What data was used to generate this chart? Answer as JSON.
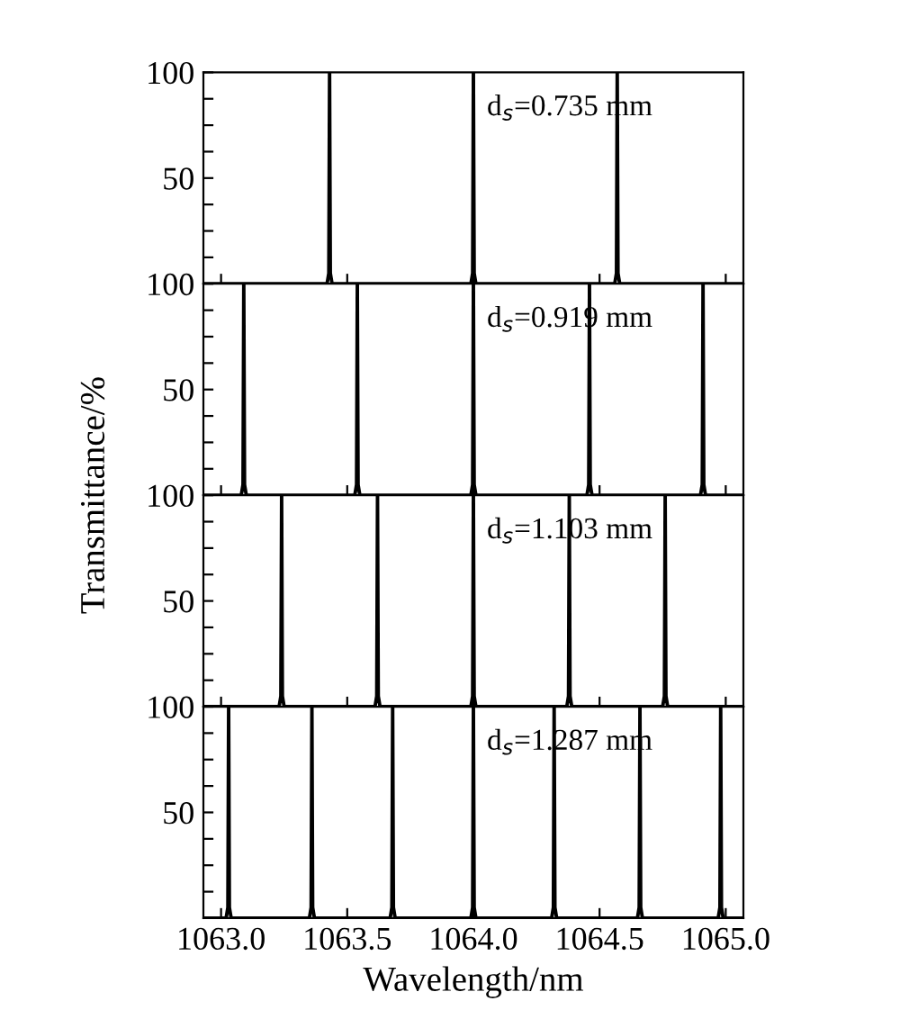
{
  "chart_data": [
    {
      "type": "line",
      "xlim": [
        1062.93,
        1065.07
      ],
      "ylim": [
        0,
        100
      ],
      "yticks": [
        {
          "value": 12.5,
          "label": null
        },
        {
          "value": 25,
          "label": null
        },
        {
          "value": 37.5,
          "label": null
        },
        50,
        {
          "value": 62.5,
          "label": null
        },
        {
          "value": 75,
          "label": null
        },
        {
          "value": 87.5,
          "label": null
        },
        100
      ],
      "xticks": [
        {
          "value": 1063.0,
          "label": null
        },
        {
          "value": 1063.5,
          "label": null
        },
        {
          "value": 1064.0,
          "label": null
        },
        {
          "value": 1064.5,
          "label": null
        },
        {
          "value": 1065.0,
          "label": null
        }
      ],
      "tick_labels": "y",
      "grid": false,
      "legend": false,
      "annotations": [
        "d$_{s}$=0.735 mm"
      ],
      "series": [
        {
          "color": "#000000",
          "x": [
            1062.93,
            1063.42,
            1063.427,
            1063.43,
            1063.433,
            1063.44,
            1063.99,
            1063.997,
            1064.0,
            1064.003,
            1064.01,
            1064.56,
            1064.567,
            1064.57,
            1064.573,
            1064.58,
            1065.07
          ],
          "values": [
            0,
            0,
            5,
            100,
            5,
            0,
            0,
            5,
            100,
            5,
            0,
            0,
            5,
            100,
            5,
            0,
            0
          ]
        }
      ]
    },
    {
      "type": "line",
      "xlim": [
        1062.93,
        1065.07
      ],
      "ylim": [
        0,
        100
      ],
      "yticks": [
        {
          "value": 12.5,
          "label": null
        },
        {
          "value": 25,
          "label": null
        },
        {
          "value": 37.5,
          "label": null
        },
        50,
        {
          "value": 62.5,
          "label": null
        },
        {
          "value": 75,
          "label": null
        },
        {
          "value": 87.5,
          "label": null
        },
        100
      ],
      "xticks": [
        {
          "value": 1063.0,
          "label": null
        },
        {
          "value": 1063.5,
          "label": null
        },
        {
          "value": 1064.0,
          "label": null
        },
        {
          "value": 1064.5,
          "label": null
        },
        {
          "value": 1065.0,
          "label": null
        }
      ],
      "tick_labels": "y",
      "grid": false,
      "legend": false,
      "ylabel": "Transmittance/%",
      "annotations": [
        "d$_{s}$=0.919 mm"
      ],
      "series": [
        {
          "color": "#000000",
          "x": [
            1062.93,
            1063.08,
            1063.087,
            1063.09,
            1063.093,
            1063.1,
            1063.53,
            1063.537,
            1063.54,
            1063.543,
            1063.55,
            1063.99,
            1063.997,
            1064.0,
            1064.003,
            1064.01,
            1064.45,
            1064.457,
            1064.46,
            1064.463,
            1064.47,
            1064.9,
            1064.907,
            1064.91,
            1064.913,
            1064.92,
            1065.07
          ],
          "values": [
            0,
            0,
            5,
            100,
            5,
            0,
            0,
            5,
            100,
            5,
            0,
            0,
            5,
            100,
            5,
            0,
            0,
            5,
            100,
            5,
            0,
            0,
            5,
            100,
            5,
            0,
            0
          ]
        }
      ]
    },
    {
      "type": "line",
      "xlim": [
        1062.93,
        1065.07
      ],
      "ylim": [
        0,
        100
      ],
      "yticks": [
        {
          "value": 12.5,
          "label": null
        },
        {
          "value": 25,
          "label": null
        },
        {
          "value": 37.5,
          "label": null
        },
        50,
        {
          "value": 62.5,
          "label": null
        },
        {
          "value": 75,
          "label": null
        },
        {
          "value": 87.5,
          "label": null
        },
        100
      ],
      "xticks": [
        {
          "value": 1063.0,
          "label": null
        },
        {
          "value": 1063.5,
          "label": null
        },
        {
          "value": 1064.0,
          "label": null
        },
        {
          "value": 1064.5,
          "label": null
        },
        {
          "value": 1065.0,
          "label": null
        }
      ],
      "tick_labels": "y",
      "grid": false,
      "legend": false,
      "annotations": [
        "d$_{s}$=1.103 mm"
      ],
      "series": [
        {
          "color": "#000000",
          "x": [
            1062.93,
            1063.23,
            1063.237,
            1063.24,
            1063.243,
            1063.25,
            1063.61,
            1063.617,
            1063.62,
            1063.623,
            1063.63,
            1063.99,
            1063.997,
            1064.0,
            1064.003,
            1064.01,
            1064.37,
            1064.377,
            1064.38,
            1064.383,
            1064.39,
            1064.75,
            1064.757,
            1064.76,
            1064.763,
            1064.77,
            1065.07
          ],
          "values": [
            0,
            0,
            5,
            100,
            5,
            0,
            0,
            5,
            100,
            5,
            0,
            0,
            5,
            100,
            5,
            0,
            0,
            5,
            100,
            5,
            0,
            0,
            5,
            100,
            5,
            0,
            0
          ]
        }
      ]
    },
    {
      "type": "line",
      "xlim": [
        1062.93,
        1065.07
      ],
      "ylim": [
        0,
        100
      ],
      "yticks": [
        {
          "value": 12.5,
          "label": null
        },
        {
          "value": 25,
          "label": null
        },
        {
          "value": 37.5,
          "label": null
        },
        50,
        {
          "value": 62.5,
          "label": null
        },
        {
          "value": 75,
          "label": null
        },
        {
          "value": 87.5,
          "label": null
        },
        100
      ],
      "xticks": [
        {
          "value": 1063.0,
          "label": "1063.0"
        },
        {
          "value": 1063.5,
          "label": "1063.5"
        },
        {
          "value": 1064.0,
          "label": "1064.0"
        },
        {
          "value": 1064.5,
          "label": "1064.5"
        },
        {
          "value": 1065.0,
          "label": "1065.0"
        }
      ],
      "grid": false,
      "legend": false,
      "xlabel": "Wavelength/nm",
      "annotations": [
        "d$_{s}$=1.287 mm"
      ],
      "series": [
        {
          "color": "#000000",
          "x": [
            1062.93,
            1063.02,
            1063.027,
            1063.03,
            1063.033,
            1063.04,
            1063.35,
            1063.357,
            1063.36,
            1063.363,
            1063.37,
            1063.67,
            1063.677,
            1063.68,
            1063.683,
            1063.69,
            1063.99,
            1063.997,
            1064.0,
            1064.003,
            1064.01,
            1064.31,
            1064.317,
            1064.32,
            1064.323,
            1064.33,
            1064.65,
            1064.657,
            1064.66,
            1064.663,
            1064.67,
            1064.97,
            1064.977,
            1064.98,
            1064.983,
            1064.99,
            1065.07
          ],
          "values": [
            0,
            0,
            5,
            100,
            5,
            0,
            0,
            5,
            100,
            5,
            0,
            0,
            5,
            100,
            5,
            0,
            0,
            5,
            100,
            5,
            0,
            0,
            5,
            100,
            5,
            0,
            0,
            5,
            100,
            5,
            0,
            0,
            5,
            100,
            5,
            0,
            0
          ]
        }
      ]
    }
  ]
}
